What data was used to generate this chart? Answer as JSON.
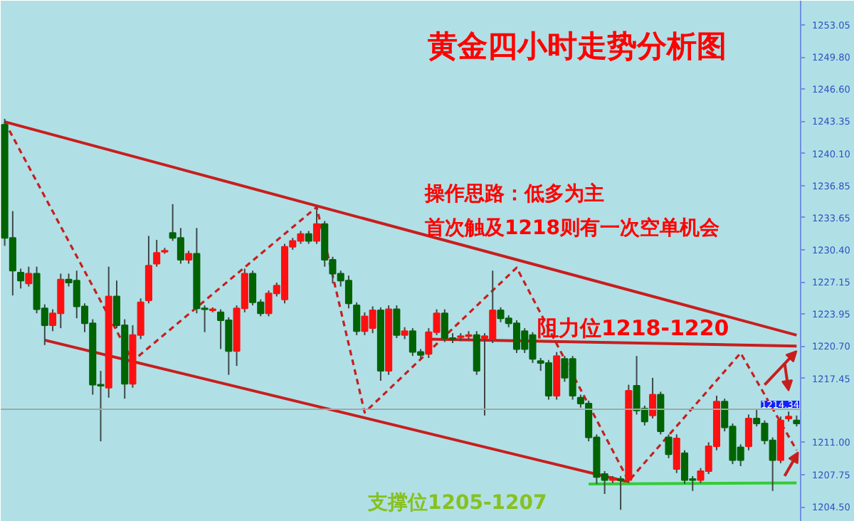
{
  "chart_data": {
    "type": "candlestick",
    "title": "黄金四小时走势分析图",
    "annotations": [
      "操作思路：低多为主",
      "首次触及1218则有一次空单机会",
      "阻力位1218-1220",
      "支撑位1205-1207"
    ],
    "categories": [
      null,
      null,
      null,
      null,
      null,
      null,
      null,
      null,
      null,
      null,
      null,
      null,
      null,
      null,
      null,
      null,
      null,
      null,
      null,
      null,
      null,
      null,
      null,
      null,
      null,
      null,
      null,
      null,
      null,
      null,
      null,
      null,
      null,
      null,
      null,
      null,
      null,
      null,
      null,
      null,
      null,
      null,
      null,
      null,
      null,
      null,
      null,
      null,
      null,
      null,
      null,
      null,
      null,
      null,
      null,
      null,
      null,
      null,
      null,
      null,
      null,
      null,
      null,
      null,
      null,
      null,
      null,
      null,
      null,
      null,
      null,
      null,
      null,
      null,
      null,
      null,
      null,
      null,
      null,
      null,
      null,
      null,
      null,
      null,
      null,
      null,
      null,
      null,
      null,
      null,
      null,
      null,
      null,
      null,
      null,
      null,
      null,
      null,
      null,
      null
    ],
    "ohlc": [
      [
        1243.0,
        1243.6,
        1230.8,
        1231.6
      ],
      [
        1231.6,
        1234.3,
        1225.8,
        1228.3
      ],
      [
        1228.1,
        1228.5,
        1226.5,
        1227.3
      ],
      [
        1227.0,
        1228.7,
        1226.7,
        1228.0
      ],
      [
        1228.0,
        1228.7,
        1224.0,
        1224.4
      ],
      [
        1224.5,
        1224.9,
        1220.8,
        1222.8
      ],
      [
        1222.8,
        1224.4,
        1222.2,
        1224.0
      ],
      [
        1224.0,
        1228.0,
        1222.5,
        1227.4
      ],
      [
        1227.4,
        1228.0,
        1226.7,
        1227.1
      ],
      [
        1227.3,
        1228.3,
        1223.5,
        1224.7
      ],
      [
        1224.7,
        1225.0,
        1222.1,
        1223.0
      ],
      [
        1223.0,
        1223.4,
        1215.8,
        1216.8
      ],
      [
        1216.8,
        1218.2,
        1211.1,
        1216.7
      ],
      [
        1216.5,
        1228.7,
        1215.5,
        1225.7
      ],
      [
        1225.7,
        1227.3,
        1222.5,
        1222.8
      ],
      [
        1222.8,
        1223.4,
        1215.4,
        1216.9
      ],
      [
        1216.9,
        1222.8,
        1216.5,
        1221.8
      ],
      [
        1221.8,
        1225.5,
        1221.4,
        1225.1
      ],
      [
        1225.3,
        1231.8,
        1225.0,
        1228.8
      ],
      [
        1229.0,
        1231.4,
        1228.7,
        1230.1
      ],
      [
        1230.2,
        1230.6,
        1230.0,
        1230.3
      ],
      [
        1232.1,
        1235.0,
        1231.3,
        1231.6
      ],
      [
        1231.6,
        1232.6,
        1229.0,
        1229.4
      ],
      [
        1229.4,
        1230.3,
        1229.0,
        1230.0
      ],
      [
        1230.0,
        1232.6,
        1224.0,
        1224.5
      ],
      [
        1224.5,
        1224.8,
        1222.1,
        1224.4
      ],
      [
        1224.3,
        1224.6,
        1224.1,
        1224.4
      ],
      [
        1224.1,
        1224.4,
        1220.4,
        1223.3
      ],
      [
        1223.3,
        1223.6,
        1217.8,
        1220.2
      ],
      [
        1220.2,
        1224.8,
        1218.7,
        1224.5
      ],
      [
        1224.5,
        1228.5,
        1224.1,
        1228.0
      ],
      [
        1228.0,
        1228.3,
        1224.8,
        1225.1
      ],
      [
        1225.1,
        1225.4,
        1223.7,
        1224.0
      ],
      [
        1224.0,
        1226.3,
        1223.7,
        1226.0
      ],
      [
        1226.0,
        1227.1,
        1225.7,
        1226.8
      ],
      [
        1225.4,
        1231.0,
        1225.0,
        1230.7
      ],
      [
        1230.7,
        1231.6,
        1230.4,
        1231.3
      ],
      [
        1231.3,
        1232.3,
        1231.0,
        1232.0
      ],
      [
        1232.0,
        1232.3,
        1231.0,
        1231.3
      ],
      [
        1231.3,
        1234.4,
        1231.0,
        1233.0
      ],
      [
        1233.0,
        1233.3,
        1228.7,
        1229.4
      ],
      [
        1229.4,
        1229.7,
        1227.0,
        1228.0
      ],
      [
        1228.0,
        1228.3,
        1226.7,
        1227.3
      ],
      [
        1227.3,
        1227.8,
        1224.5,
        1225.0
      ],
      [
        1224.8,
        1225.1,
        1221.8,
        1222.2
      ],
      [
        1222.2,
        1224.1,
        1221.8,
        1223.7
      ],
      [
        1222.5,
        1224.7,
        1222.0,
        1224.3
      ],
      [
        1224.3,
        1224.6,
        1217.2,
        1218.2
      ],
      [
        1218.2,
        1224.8,
        1217.8,
        1224.4
      ],
      [
        1224.4,
        1224.8,
        1221.5,
        1221.8
      ],
      [
        1221.8,
        1222.6,
        1221.4,
        1222.2
      ],
      [
        1222.2,
        1222.5,
        1219.7,
        1220.1
      ],
      [
        1220.1,
        1220.4,
        1219.4,
        1219.8
      ],
      [
        1219.9,
        1222.5,
        1219.5,
        1222.1
      ],
      [
        1222.1,
        1224.4,
        1221.8,
        1224.0
      ],
      [
        1224.0,
        1224.4,
        1221.1,
        1221.5
      ],
      [
        1221.5,
        1222.0,
        1221.0,
        1221.4
      ],
      [
        1221.6,
        1222.0,
        1221.2,
        1221.7
      ],
      [
        1221.7,
        1222.2,
        1221.4,
        1221.8
      ],
      [
        1221.8,
        1222.2,
        1217.8,
        1218.2
      ],
      [
        1221.5,
        1222.0,
        1213.7,
        1221.7
      ],
      [
        1221.4,
        1228.3,
        1221.0,
        1224.3
      ],
      [
        1224.3,
        1224.6,
        1223.1,
        1223.5
      ],
      [
        1223.5,
        1223.8,
        1222.6,
        1223.0
      ],
      [
        1223.0,
        1223.3,
        1220.0,
        1220.4
      ],
      [
        1222.2,
        1222.5,
        1220.0,
        1220.4
      ],
      [
        1221.8,
        1222.1,
        1219.0,
        1219.4
      ],
      [
        1219.2,
        1219.5,
        1218.2,
        1219.0
      ],
      [
        1219.0,
        1219.3,
        1215.3,
        1215.7
      ],
      [
        1215.7,
        1220.1,
        1215.3,
        1219.7
      ],
      [
        1219.4,
        1219.7,
        1217.1,
        1217.5
      ],
      [
        1219.4,
        1219.7,
        1215.3,
        1215.7
      ],
      [
        1215.5,
        1215.8,
        1214.5,
        1214.9
      ],
      [
        1214.9,
        1215.2,
        1211.1,
        1211.5
      ],
      [
        1211.5,
        1211.8,
        1206.8,
        1207.5
      ],
      [
        1207.8,
        1208.1,
        1205.8,
        1207.2
      ],
      [
        1207.2,
        1207.6,
        1206.9,
        1207.3
      ],
      [
        1207.3,
        1207.6,
        1204.2,
        1207.2
      ],
      [
        1207.2,
        1216.8,
        1206.9,
        1216.2
      ],
      [
        1216.7,
        1219.7,
        1213.8,
        1214.2
      ],
      [
        1214.4,
        1214.7,
        1212.7,
        1213.1
      ],
      [
        1213.7,
        1217.5,
        1213.4,
        1215.8
      ],
      [
        1215.8,
        1216.1,
        1211.8,
        1212.1
      ],
      [
        1211.5,
        1211.8,
        1209.4,
        1209.8
      ],
      [
        1208.3,
        1211.8,
        1207.9,
        1211.4
      ],
      [
        1209.9,
        1210.2,
        1206.8,
        1207.2
      ],
      [
        1207.3,
        1207.6,
        1206.1,
        1207.2
      ],
      [
        1207.2,
        1208.4,
        1206.9,
        1208.1
      ],
      [
        1208.1,
        1211.0,
        1207.8,
        1210.6
      ],
      [
        1210.6,
        1215.7,
        1210.2,
        1215.1
      ],
      [
        1215.1,
        1215.4,
        1212.1,
        1212.5
      ],
      [
        1212.6,
        1212.9,
        1208.8,
        1209.2
      ],
      [
        1210.5,
        1210.8,
        1208.6,
        1209.2
      ],
      [
        1210.6,
        1213.8,
        1210.2,
        1213.4
      ],
      [
        1213.4,
        1214.4,
        1212.6,
        1212.9
      ],
      [
        1212.9,
        1213.2,
        1210.8,
        1211.2
      ],
      [
        1211.2,
        1211.5,
        1206.1,
        1209.2
      ],
      [
        1209.2,
        1213.6,
        1208.9,
        1213.2
      ],
      [
        1213.4,
        1214.1,
        1213.1,
        1213.6
      ],
      [
        1213.2,
        1213.7,
        1212.6,
        1212.9
      ]
    ],
    "series": [
      {
        "type": "line",
        "color": "#c81e1e",
        "line_style": "solid",
        "values": [
          1243.3,
          null,
          null,
          null,
          null,
          null,
          null,
          null,
          null,
          null,
          null,
          null,
          null,
          null,
          null,
          null,
          null,
          null,
          null,
          null,
          null,
          null,
          null,
          null,
          null,
          null,
          null,
          null,
          null,
          null,
          null,
          null,
          null,
          null,
          null,
          null,
          null,
          null,
          null,
          null,
          null,
          null,
          null,
          null,
          null,
          null,
          null,
          null,
          null,
          null,
          null,
          null,
          null,
          null,
          null,
          null,
          null,
          null,
          null,
          null,
          null,
          null,
          null,
          null,
          null,
          null,
          null,
          null,
          null,
          null,
          null,
          null,
          null,
          null,
          null,
          null,
          null,
          null,
          null,
          null,
          null,
          null,
          null,
          null,
          null,
          null,
          null,
          null,
          null,
          null,
          null,
          null,
          null,
          null,
          null,
          null,
          null,
          null,
          null,
          1221.8
        ]
      },
      {
        "type": "line",
        "color": "#c81e1e",
        "line_style": "solid",
        "values": [
          null,
          null,
          null,
          null,
          null,
          1221.3,
          null,
          null,
          null,
          null,
          null,
          null,
          null,
          null,
          null,
          null,
          null,
          null,
          null,
          null,
          null,
          null,
          null,
          null,
          null,
          null,
          null,
          null,
          null,
          null,
          null,
          null,
          null,
          null,
          null,
          null,
          null,
          null,
          null,
          null,
          null,
          null,
          null,
          null,
          null,
          null,
          null,
          null,
          null,
          null,
          null,
          null,
          null,
          null,
          null,
          null,
          null,
          null,
          null,
          null,
          null,
          null,
          null,
          null,
          null,
          null,
          null,
          null,
          null,
          null,
          null,
          null,
          null,
          null,
          null,
          null,
          null,
          null,
          1207.0,
          null,
          null,
          null,
          null,
          null,
          null,
          null,
          null,
          null,
          null,
          null,
          null,
          null,
          null,
          null,
          null,
          null,
          null,
          null,
          null,
          null
        ]
      },
      {
        "type": "line",
        "color": "#c81e1e",
        "line_style": "solid",
        "values": [
          null,
          null,
          null,
          null,
          null,
          null,
          null,
          null,
          null,
          null,
          null,
          null,
          null,
          null,
          null,
          null,
          null,
          null,
          null,
          null,
          null,
          null,
          null,
          null,
          null,
          null,
          null,
          null,
          null,
          null,
          null,
          null,
          null,
          null,
          null,
          null,
          null,
          null,
          null,
          null,
          null,
          null,
          null,
          null,
          null,
          null,
          null,
          null,
          null,
          null,
          null,
          null,
          null,
          1221.4,
          null,
          null,
          null,
          null,
          null,
          null,
          null,
          null,
          null,
          null,
          null,
          null,
          null,
          null,
          null,
          null,
          null,
          null,
          null,
          null,
          null,
          null,
          null,
          null,
          null,
          null,
          null,
          null,
          null,
          null,
          null,
          null,
          null,
          null,
          null,
          null,
          null,
          null,
          null,
          null,
          null,
          null,
          null,
          null,
          null,
          1220.7
        ]
      },
      {
        "type": "line",
        "color": "#33cc33",
        "line_style": "solid",
        "values": [
          null,
          null,
          null,
          null,
          null,
          null,
          null,
          null,
          null,
          null,
          null,
          null,
          null,
          null,
          null,
          null,
          null,
          null,
          null,
          null,
          null,
          null,
          null,
          null,
          null,
          null,
          null,
          null,
          null,
          null,
          null,
          null,
          null,
          null,
          null,
          null,
          null,
          null,
          null,
          null,
          null,
          null,
          null,
          null,
          null,
          null,
          null,
          null,
          null,
          null,
          null,
          null,
          null,
          null,
          null,
          null,
          null,
          null,
          null,
          null,
          null,
          null,
          null,
          null,
          null,
          null,
          null,
          null,
          null,
          null,
          null,
          null,
          null,
          1206.8,
          null,
          null,
          null,
          null,
          null,
          null,
          null,
          null,
          null,
          null,
          null,
          null,
          null,
          null,
          null,
          null,
          null,
          null,
          null,
          null,
          null,
          null,
          null,
          null,
          null,
          1206.9
        ]
      },
      {
        "type": "line",
        "color": "#c81e1e",
        "line_style": "dashed",
        "values": [
          1243.3,
          null,
          null,
          null,
          null,
          null,
          null,
          null,
          null,
          null,
          null,
          null,
          null,
          null,
          null,
          null,
          1219.2,
          null,
          null,
          null,
          null,
          null,
          null,
          null,
          null,
          null,
          null,
          null,
          null,
          null,
          null,
          null,
          null,
          null,
          null,
          null,
          null,
          null,
          null,
          1234.7,
          null,
          null,
          null,
          null,
          null,
          1214.0,
          null,
          null,
          null,
          null,
          null,
          null,
          null,
          null,
          null,
          null,
          null,
          null,
          null,
          null,
          null,
          null,
          null,
          null,
          1228.6,
          null,
          null,
          null,
          null,
          null,
          null,
          null,
          null,
          null,
          null,
          null,
          null,
          null,
          1207.1,
          null,
          null,
          null,
          null,
          null,
          null,
          null,
          null,
          null,
          null,
          null,
          null,
          null,
          1220.0,
          null,
          null,
          null,
          null,
          null,
          null,
          1210.2
        ]
      }
    ],
    "ref_lines": [
      {
        "axis": "y",
        "value": 1214.34,
        "label": "1214.34",
        "color": "#a0a8a8"
      }
    ],
    "ylim": [
      1203.0,
      1255.5
    ],
    "yticks": [
      {
        "value": 1204.5,
        "label": "1204.50"
      },
      {
        "value": 1207.75,
        "label": "1207.75"
      },
      {
        "value": 1211.0,
        "label": "1211.00"
      },
      {
        "value": 1217.45,
        "label": "1217.45"
      },
      {
        "value": 1220.7,
        "label": "1220.70"
      },
      {
        "value": 1223.95,
        "label": "1223.95"
      },
      {
        "value": 1227.15,
        "label": "1227.15"
      },
      {
        "value": 1230.4,
        "label": "1230.40"
      },
      {
        "value": 1233.65,
        "label": "1233.65"
      },
      {
        "value": 1236.85,
        "label": "1236.85"
      },
      {
        "value": 1240.1,
        "label": "1240.10"
      },
      {
        "value": 1243.35,
        "label": "1243.35"
      },
      {
        "value": 1246.6,
        "label": "1246.60"
      },
      {
        "value": 1249.8,
        "label": "1249.80"
      },
      {
        "value": 1253.05,
        "label": "1253.05"
      }
    ],
    "tick_labels": "y",
    "grid": false
  }
}
